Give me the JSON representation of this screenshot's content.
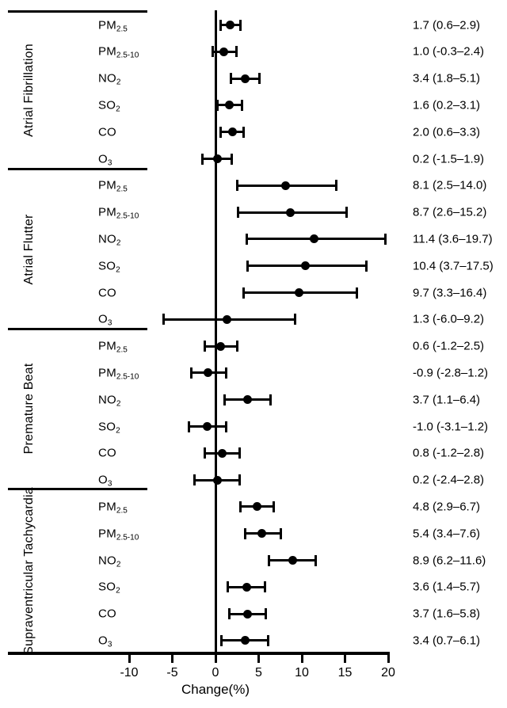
{
  "figure": {
    "colors": {
      "ink": "#000000",
      "background": "#ffffff"
    }
  },
  "chart_data": {
    "type": "forest",
    "title": "",
    "xlabel": "Change(%)",
    "x_ticks": [
      -10,
      -5,
      0,
      5,
      10,
      15,
      20
    ],
    "xlim": [
      -14,
      20.5
    ],
    "zero_reference_line": 0,
    "grid": false,
    "groups": [
      {
        "name": "Atrial Fibrillation",
        "rows": [
          {
            "pollutant": "PM",
            "pollutant_sub": "2.5",
            "estimate": 1.7,
            "ci_low": 0.6,
            "ci_high": 2.9,
            "value_label": "1.7 (0.6–2.9)"
          },
          {
            "pollutant": "PM",
            "pollutant_sub": "2.5-10",
            "estimate": 1.0,
            "ci_low": -0.3,
            "ci_high": 2.4,
            "value_label": "1.0 (-0.3–2.4)"
          },
          {
            "pollutant": "NO",
            "pollutant_sub": "2",
            "estimate": 3.4,
            "ci_low": 1.8,
            "ci_high": 5.1,
            "value_label": "3.4 (1.8–5.1)"
          },
          {
            "pollutant": "SO",
            "pollutant_sub": "2",
            "estimate": 1.6,
            "ci_low": 0.2,
            "ci_high": 3.1,
            "value_label": "1.6 (0.2–3.1)"
          },
          {
            "pollutant": "CO",
            "pollutant_sub": "",
            "estimate": 2.0,
            "ci_low": 0.6,
            "ci_high": 3.3,
            "value_label": "2.0 (0.6–3.3)"
          },
          {
            "pollutant": "O",
            "pollutant_sub": "3",
            "estimate": 0.2,
            "ci_low": -1.5,
            "ci_high": 1.9,
            "value_label": "0.2 (-1.5–1.9)"
          }
        ]
      },
      {
        "name": "Atrial Flutter",
        "rows": [
          {
            "pollutant": "PM",
            "pollutant_sub": "2.5",
            "estimate": 8.1,
            "ci_low": 2.5,
            "ci_high": 14.0,
            "value_label": "8.1 (2.5–14.0)"
          },
          {
            "pollutant": "PM",
            "pollutant_sub": "2.5-10",
            "estimate": 8.7,
            "ci_low": 2.6,
            "ci_high": 15.2,
            "value_label": "8.7 (2.6–15.2)"
          },
          {
            "pollutant": "NO",
            "pollutant_sub": "2",
            "estimate": 11.4,
            "ci_low": 3.6,
            "ci_high": 19.7,
            "value_label": "11.4 (3.6–19.7)"
          },
          {
            "pollutant": "SO",
            "pollutant_sub": "2",
            "estimate": 10.4,
            "ci_low": 3.7,
            "ci_high": 17.5,
            "value_label": "10.4 (3.7–17.5)"
          },
          {
            "pollutant": "CO",
            "pollutant_sub": "",
            "estimate": 9.7,
            "ci_low": 3.3,
            "ci_high": 16.4,
            "value_label": "9.7 (3.3–16.4)"
          },
          {
            "pollutant": "O",
            "pollutant_sub": "3",
            "estimate": 1.3,
            "ci_low": -6.0,
            "ci_high": 9.2,
            "value_label": "1.3 (-6.0–9.2)"
          }
        ]
      },
      {
        "name": "Premature Beat",
        "rows": [
          {
            "pollutant": "PM",
            "pollutant_sub": "2.5",
            "estimate": 0.6,
            "ci_low": -1.2,
            "ci_high": 2.5,
            "value_label": "0.6 (-1.2–2.5)"
          },
          {
            "pollutant": "PM",
            "pollutant_sub": "2.5-10",
            "estimate": -0.9,
            "ci_low": -2.8,
            "ci_high": 1.2,
            "value_label": "-0.9 (-2.8–1.2)"
          },
          {
            "pollutant": "NO",
            "pollutant_sub": "2",
            "estimate": 3.7,
            "ci_low": 1.1,
            "ci_high": 6.4,
            "value_label": "3.7 (1.1–6.4)"
          },
          {
            "pollutant": "SO",
            "pollutant_sub": "2",
            "estimate": -1.0,
            "ci_low": -3.1,
            "ci_high": 1.2,
            "value_label": "-1.0 (-3.1–1.2)"
          },
          {
            "pollutant": "CO",
            "pollutant_sub": "",
            "estimate": 0.8,
            "ci_low": -1.2,
            "ci_high": 2.8,
            "value_label": "0.8 (-1.2–2.8)"
          },
          {
            "pollutant": "O",
            "pollutant_sub": "3",
            "estimate": 0.2,
            "ci_low": -2.4,
            "ci_high": 2.8,
            "value_label": "0.2 (-2.4–2.8)"
          }
        ]
      },
      {
        "name": "Supraventricular Tachycardia",
        "rows": [
          {
            "pollutant": "PM",
            "pollutant_sub": "2.5",
            "estimate": 4.8,
            "ci_low": 2.9,
            "ci_high": 6.7,
            "value_label": "4.8 (2.9–6.7)"
          },
          {
            "pollutant": "PM",
            "pollutant_sub": "2.5-10",
            "estimate": 5.4,
            "ci_low": 3.4,
            "ci_high": 7.6,
            "value_label": "5.4 (3.4–7.6)"
          },
          {
            "pollutant": "NO",
            "pollutant_sub": "2",
            "estimate": 8.9,
            "ci_low": 6.2,
            "ci_high": 11.6,
            "value_label": "8.9 (6.2–11.6)"
          },
          {
            "pollutant": "SO",
            "pollutant_sub": "2",
            "estimate": 3.6,
            "ci_low": 1.4,
            "ci_high": 5.7,
            "value_label": "3.6 (1.4–5.7)"
          },
          {
            "pollutant": "CO",
            "pollutant_sub": "",
            "estimate": 3.7,
            "ci_low": 1.6,
            "ci_high": 5.8,
            "value_label": "3.7 (1.6–5.8)"
          },
          {
            "pollutant": "O",
            "pollutant_sub": "3",
            "estimate": 3.4,
            "ci_low": 0.7,
            "ci_high": 6.1,
            "value_label": "3.4 (0.7–6.1)"
          }
        ]
      }
    ]
  }
}
